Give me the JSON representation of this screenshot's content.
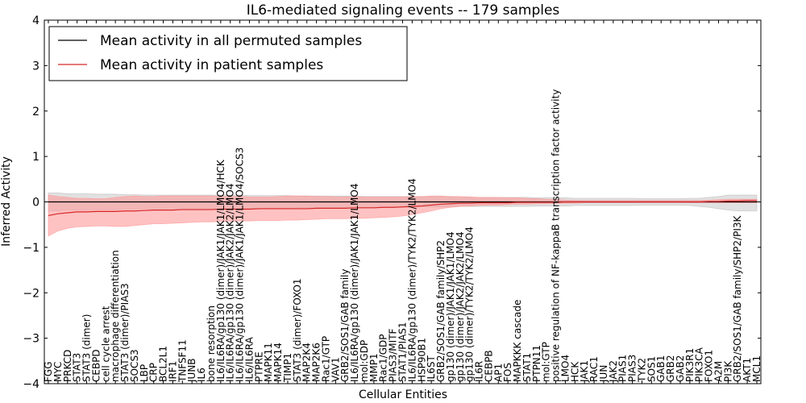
{
  "chart_data": {
    "type": "line",
    "title": "IL6-mediated signaling events -- 179 samples",
    "xlabel": "Cellular Entities",
    "ylabel": "Inferred Activity",
    "ylim": [
      -4,
      4
    ],
    "yticks": [
      -4,
      -3,
      -2,
      -1,
      0,
      1,
      2,
      3,
      4
    ],
    "legend_position": "top-left",
    "colors": {
      "permuted": "#000000",
      "patient": "#d62728",
      "patient_band": "#ff9999",
      "permuted_band": "#bdbdbd"
    },
    "categories": [
      "FGG",
      "MYC",
      "PRKCD",
      "STAT3",
      "STAT3 (dimer)",
      "CEBPD",
      "cell cycle arrest",
      "macrophage differentiation",
      "STAT3 (dimer)/PIAS3",
      "SOCS3",
      "LBP",
      "CRP",
      "BCL2L1",
      "IRF1",
      "TNFSF11",
      "JUNB",
      "IL6",
      "bone resorption",
      "IL6/IL6RA/gp130 (dimer)/JAK1/JAK1/LMO4/HCK",
      "IL6/IL6RA/gp130 (dimer)/JAK2/JAK2/LMO4",
      "IL6/IL6RA/gp130 (dimer)/JAK1/JAK1/LMO4/SOCS3",
      "IL6/IL6RA",
      "PTPRE",
      "MAPK11",
      "MAPK14",
      "TIMP1",
      "STAT3 (dimer)/FOXO1",
      "MAP2K4",
      "MAP2K6",
      "Rac1/GTP",
      "VAV1",
      "GRB2/SOS1/GAB family",
      "IL6/IL6RA/gp130 (dimer)/JAK1/JAK1/LMO4",
      "mol:GDP",
      "MMP1",
      "Rac1/GDP",
      "PIAS3/MITF",
      "STAT1/PIAS1",
      "IL6/IL6RA/gp130 (dimer)/TYK2/TYK2/LMO4",
      "HSP90B1",
      "IL6ST",
      "GRB2/SOS1/GAB family/SHP2",
      "gp130 (dimer)/JAK1/JAK1/LMO4",
      "gp130 (dimer)/JAK2/JAK2/LMO4",
      "gp130 (dimer)/TYK2/TYK2/LMO4",
      "IL6R",
      "CEBPB",
      "AP1",
      "FOS",
      "MAPKKK cascade",
      "STAT1",
      "PTPN11",
      "mol:GTP",
      "positive regulation of NF-kappaB transcription factor activity",
      "LMO4",
      "HCK",
      "JAK1",
      "RAC1",
      "JUN",
      "JAK2",
      "PIAS1",
      "PIAS3",
      "TYK2",
      "SOS1",
      "GAB1",
      "GRB2",
      "GAB2",
      "PIK3R1",
      "PIK3CA",
      "FOXO1",
      "A2M",
      "PI3K",
      "GRB2/SOS1/GAB family/SHP2/PI3K",
      "AKT1",
      "MCL1"
    ],
    "series": [
      {
        "name": "Mean activity in all permuted samples",
        "values": [
          0.0,
          0.0,
          0.0,
          0.0,
          0.0,
          0.0,
          0.0,
          0.0,
          0.0,
          0.0,
          0.0,
          0.0,
          0.0,
          0.0,
          0.0,
          0.0,
          0.0,
          0.0,
          0.0,
          0.0,
          0.0,
          0.0,
          0.0,
          0.0,
          0.0,
          0.0,
          0.0,
          0.0,
          0.0,
          0.0,
          0.0,
          0.0,
          0.0,
          0.0,
          0.0,
          0.0,
          0.0,
          0.0,
          0.0,
          0.0,
          0.0,
          0.0,
          0.0,
          0.0,
          0.0,
          0.0,
          0.0,
          0.0,
          0.0,
          0.0,
          0.0,
          0.0,
          0.0,
          0.0,
          0.0,
          0.0,
          0.0,
          0.0,
          0.0,
          0.0,
          0.0,
          0.0,
          0.0,
          0.0,
          0.0,
          0.0,
          0.0,
          0.0,
          0.0,
          0.0,
          0.0,
          0.0,
          0.0,
          0.0,
          0.0
        ],
        "band_upper": [
          0.2,
          0.2,
          0.18,
          0.18,
          0.18,
          0.17,
          0.17,
          0.17,
          0.16,
          0.16,
          0.15,
          0.15,
          0.15,
          0.15,
          0.15,
          0.15,
          0.15,
          0.15,
          0.15,
          0.15,
          0.15,
          0.14,
          0.14,
          0.14,
          0.14,
          0.14,
          0.13,
          0.13,
          0.13,
          0.13,
          0.13,
          0.13,
          0.13,
          0.12,
          0.12,
          0.12,
          0.12,
          0.12,
          0.12,
          0.11,
          0.11,
          0.11,
          0.11,
          0.1,
          0.1,
          0.1,
          0.1,
          0.1,
          0.1,
          0.1,
          0.1,
          0.09,
          0.09,
          0.09,
          0.09,
          0.08,
          0.08,
          0.08,
          0.08,
          0.08,
          0.08,
          0.08,
          0.07,
          0.07,
          0.07,
          0.07,
          0.07,
          0.08,
          0.08,
          0.1,
          0.12,
          0.15,
          0.15,
          0.15,
          0.15
        ],
        "band_lower": [
          -0.2,
          -0.2,
          -0.18,
          -0.18,
          -0.18,
          -0.17,
          -0.17,
          -0.17,
          -0.16,
          -0.16,
          -0.15,
          -0.15,
          -0.15,
          -0.15,
          -0.15,
          -0.15,
          -0.15,
          -0.15,
          -0.15,
          -0.15,
          -0.15,
          -0.14,
          -0.14,
          -0.14,
          -0.14,
          -0.14,
          -0.13,
          -0.13,
          -0.13,
          -0.13,
          -0.13,
          -0.13,
          -0.13,
          -0.12,
          -0.12,
          -0.12,
          -0.12,
          -0.12,
          -0.12,
          -0.11,
          -0.11,
          -0.11,
          -0.11,
          -0.1,
          -0.1,
          -0.1,
          -0.1,
          -0.1,
          -0.1,
          -0.1,
          -0.1,
          -0.09,
          -0.09,
          -0.09,
          -0.09,
          -0.08,
          -0.08,
          -0.08,
          -0.08,
          -0.08,
          -0.08,
          -0.08,
          -0.07,
          -0.07,
          -0.07,
          -0.07,
          -0.07,
          -0.08,
          -0.1,
          -0.12,
          -0.15,
          -0.18,
          -0.2,
          -0.2,
          -0.2
        ]
      },
      {
        "name": "Mean activity in patient samples",
        "values": [
          -0.3,
          -0.26,
          -0.24,
          -0.22,
          -0.22,
          -0.21,
          -0.21,
          -0.21,
          -0.2,
          -0.2,
          -0.19,
          -0.18,
          -0.18,
          -0.18,
          -0.17,
          -0.17,
          -0.17,
          -0.17,
          -0.16,
          -0.16,
          -0.16,
          -0.16,
          -0.15,
          -0.15,
          -0.15,
          -0.15,
          -0.15,
          -0.15,
          -0.14,
          -0.14,
          -0.14,
          -0.14,
          -0.13,
          -0.13,
          -0.13,
          -0.12,
          -0.12,
          -0.11,
          -0.1,
          -0.09,
          -0.07,
          -0.05,
          -0.04,
          -0.03,
          -0.03,
          -0.02,
          -0.02,
          -0.02,
          -0.02,
          -0.01,
          -0.01,
          -0.01,
          -0.01,
          -0.01,
          0.0,
          0.0,
          0.0,
          0.0,
          0.0,
          0.0,
          0.0,
          0.0,
          0.0,
          0.0,
          0.0,
          0.0,
          0.0,
          0.0,
          0.0,
          0.01,
          0.01,
          0.02,
          0.02,
          0.03,
          0.03
        ],
        "band_upper": [
          0.15,
          0.12,
          0.1,
          0.08,
          0.08,
          0.07,
          0.07,
          0.1,
          0.12,
          0.13,
          0.12,
          0.12,
          0.13,
          0.13,
          0.13,
          0.13,
          0.13,
          0.13,
          0.12,
          0.12,
          0.12,
          0.11,
          0.11,
          0.11,
          0.12,
          0.13,
          0.13,
          0.13,
          0.12,
          0.12,
          0.11,
          0.11,
          0.11,
          0.11,
          0.11,
          0.11,
          0.11,
          0.11,
          0.12,
          0.12,
          0.13,
          0.13,
          0.12,
          0.12,
          0.11,
          0.1,
          0.1,
          0.1,
          0.09,
          0.09,
          0.08,
          0.07,
          0.06,
          0.05,
          0.04,
          0.03,
          0.03,
          0.03,
          0.03,
          0.03,
          0.03,
          0.03,
          0.03,
          0.03,
          0.03,
          0.03,
          0.03,
          0.03,
          0.03,
          0.04,
          0.05,
          0.06,
          0.06,
          0.06,
          0.06
        ],
        "band_lower": [
          -0.75,
          -0.64,
          -0.58,
          -0.55,
          -0.54,
          -0.53,
          -0.53,
          -0.54,
          -0.54,
          -0.52,
          -0.5,
          -0.48,
          -0.48,
          -0.47,
          -0.46,
          -0.45,
          -0.44,
          -0.44,
          -0.43,
          -0.43,
          -0.42,
          -0.42,
          -0.41,
          -0.41,
          -0.41,
          -0.4,
          -0.4,
          -0.39,
          -0.38,
          -0.37,
          -0.37,
          -0.37,
          -0.36,
          -0.36,
          -0.35,
          -0.34,
          -0.33,
          -0.31,
          -0.28,
          -0.24,
          -0.2,
          -0.15,
          -0.12,
          -0.1,
          -0.09,
          -0.08,
          -0.07,
          -0.07,
          -0.06,
          -0.05,
          -0.05,
          -0.04,
          -0.04,
          -0.03,
          -0.03,
          -0.03,
          -0.02,
          -0.02,
          -0.02,
          -0.02,
          -0.02,
          -0.02,
          -0.02,
          -0.02,
          -0.02,
          -0.02,
          -0.02,
          -0.02,
          -0.02,
          -0.02,
          -0.02,
          -0.02,
          -0.02,
          -0.02,
          -0.02
        ]
      }
    ]
  }
}
